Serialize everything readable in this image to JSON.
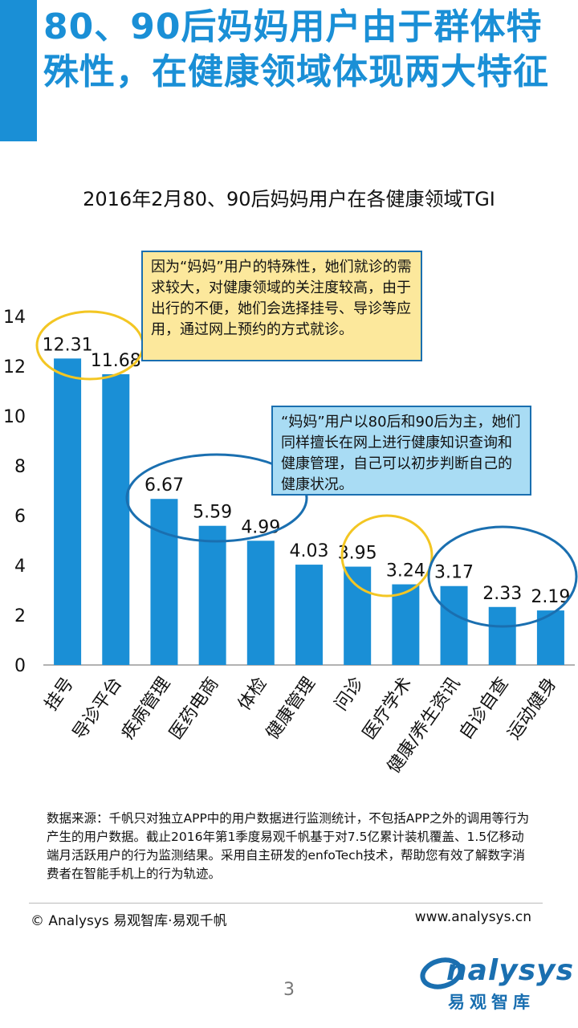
{
  "header": {
    "title": "80、90后妈妈用户由于群体特殊性，在健康领域体现两大特征"
  },
  "chart_data": {
    "type": "bar",
    "title": "2016年2月80、90后妈妈用户在各健康领域TGI",
    "categories": [
      "挂号",
      "导诊平台",
      "疾病管理",
      "医药电商",
      "体检",
      "健康管理",
      "问诊",
      "医疗学术",
      "健康/养生资讯",
      "自诊自查",
      "运动健身"
    ],
    "values": [
      12.31,
      11.68,
      6.67,
      5.59,
      4.99,
      4.03,
      3.95,
      3.24,
      3.17,
      2.33,
      2.19
    ],
    "value_labels": [
      "12.31",
      "11.68",
      "6.67",
      "5.59",
      "4.99",
      "4.03",
      "3.95",
      "3.24",
      "3.17",
      "2.33",
      "2.19"
    ],
    "yticks": [
      "0",
      "2",
      "4",
      "6",
      "8",
      "10",
      "12",
      "14"
    ],
    "ylim": [
      0,
      14
    ],
    "grid": false,
    "bar_color": "#1a8fd6"
  },
  "callouts": {
    "yellow": "因为“妈妈”用户的特殊性，她们就诊的需求较大，对健康领域的关注度较高，由于出行的不便，她们会选择挂号、导诊等应用，通过网上预约的方式就诊。",
    "blue": "“妈妈”用户以80后和90后为主，她们同样擅长在网上进行健康知识查询和健康管理，自己可以初步判断自己的健康状况。"
  },
  "footer": {
    "source": "数据来源：千帆只对独立APP中的用户数据进行监测统计，不包括APP之外的调用等行为产生的用户数据。截止2016年第1季度易观千帆基于对7.5亿累计装机覆盖、1.5亿移动端月活跃用户的行为监测结果。采用自主研发的enfoTech技术，帮助您有效了解数字消费者在智能手机上的行为轨迹。",
    "copyright": "© Analysys 易观智库·易观千帆",
    "website": "www.analysys.cn",
    "logo_text": "nalysys",
    "logo_cn": "易观智库",
    "page_number": "3"
  },
  "colors": {
    "accent": "#1a8fd6",
    "callout_yellow_bg": "#fce89c",
    "callout_blue_bg": "#a9dcf4",
    "ellipse_yellow": "#f3c623",
    "ellipse_blue": "#1a6fb0"
  }
}
